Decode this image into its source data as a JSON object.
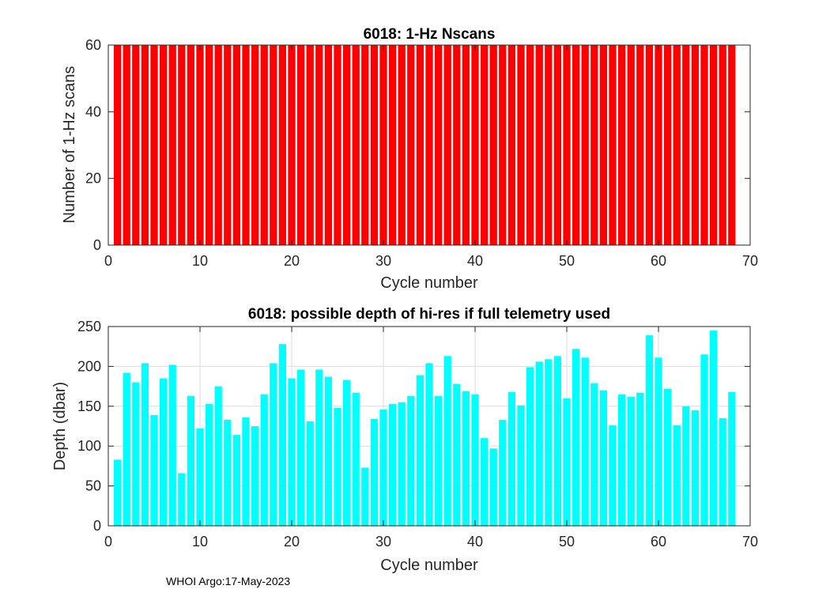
{
  "footer": "WHOI Argo:17-May-2023",
  "chart_data": [
    {
      "type": "bar",
      "title": "6018: 1-Hz Nscans",
      "xlabel": "Cycle number",
      "ylabel": "Number of 1-Hz scans",
      "xlim": [
        0,
        70
      ],
      "ylim": [
        0,
        60
      ],
      "xticks": [
        0,
        10,
        20,
        30,
        40,
        50,
        60,
        70
      ],
      "yticks": [
        0,
        20,
        40,
        60
      ],
      "grid": false,
      "color": "#ff0000",
      "x": [
        1,
        2,
        3,
        4,
        5,
        6,
        7,
        8,
        9,
        10,
        11,
        12,
        13,
        14,
        15,
        16,
        17,
        18,
        19,
        20,
        21,
        22,
        23,
        24,
        25,
        26,
        27,
        28,
        29,
        30,
        31,
        32,
        33,
        34,
        35,
        36,
        37,
        38,
        39,
        40,
        41,
        42,
        43,
        44,
        45,
        46,
        47,
        48,
        49,
        50,
        51,
        52,
        53,
        54,
        55,
        56,
        57,
        58,
        59,
        60,
        61,
        62,
        63,
        64,
        65,
        66,
        67,
        68
      ],
      "values": [
        60,
        60,
        60,
        60,
        60,
        60,
        60,
        60,
        60,
        60,
        60,
        60,
        60,
        60,
        60,
        60,
        60,
        60,
        60,
        60,
        60,
        60,
        60,
        60,
        60,
        60,
        60,
        60,
        60,
        60,
        60,
        60,
        60,
        60,
        60,
        60,
        60,
        60,
        60,
        60,
        60,
        60,
        60,
        60,
        60,
        60,
        60,
        60,
        60,
        60,
        60,
        60,
        60,
        60,
        60,
        60,
        60,
        60,
        60,
        60,
        60,
        60,
        60,
        60,
        60,
        60,
        60,
        60
      ]
    },
    {
      "type": "bar",
      "title": "6018: possible depth of hi-res if full telemetry used",
      "xlabel": "Cycle number",
      "ylabel": "Depth (dbar)",
      "xlim": [
        0,
        70
      ],
      "ylim": [
        0,
        250
      ],
      "xticks": [
        0,
        10,
        20,
        30,
        40,
        50,
        60,
        70
      ],
      "yticks": [
        0,
        50,
        100,
        150,
        200,
        250
      ],
      "grid": true,
      "color": "#00ffff",
      "x": [
        1,
        2,
        3,
        4,
        5,
        6,
        7,
        8,
        9,
        10,
        11,
        12,
        13,
        14,
        15,
        16,
        17,
        18,
        19,
        20,
        21,
        22,
        23,
        24,
        25,
        26,
        27,
        28,
        29,
        30,
        31,
        32,
        33,
        34,
        35,
        36,
        37,
        38,
        39,
        40,
        41,
        42,
        43,
        44,
        45,
        46,
        47,
        48,
        49,
        50,
        51,
        52,
        53,
        54,
        55,
        56,
        57,
        58,
        59,
        60,
        61,
        62,
        63,
        64,
        65,
        66,
        67,
        68
      ],
      "values": [
        83,
        192,
        180,
        204,
        139,
        185,
        202,
        66,
        163,
        122,
        153,
        175,
        133,
        114,
        136,
        125,
        165,
        204,
        228,
        185,
        196,
        131,
        196,
        187,
        148,
        183,
        167,
        73,
        134,
        146,
        153,
        155,
        163,
        189,
        204,
        163,
        213,
        178,
        169,
        165,
        110,
        97,
        133,
        168,
        151,
        199,
        206,
        209,
        213,
        160,
        222,
        211,
        179,
        170,
        126,
        165,
        162,
        167,
        239,
        211,
        172,
        126,
        150,
        145,
        215,
        245,
        135,
        168
      ]
    }
  ]
}
